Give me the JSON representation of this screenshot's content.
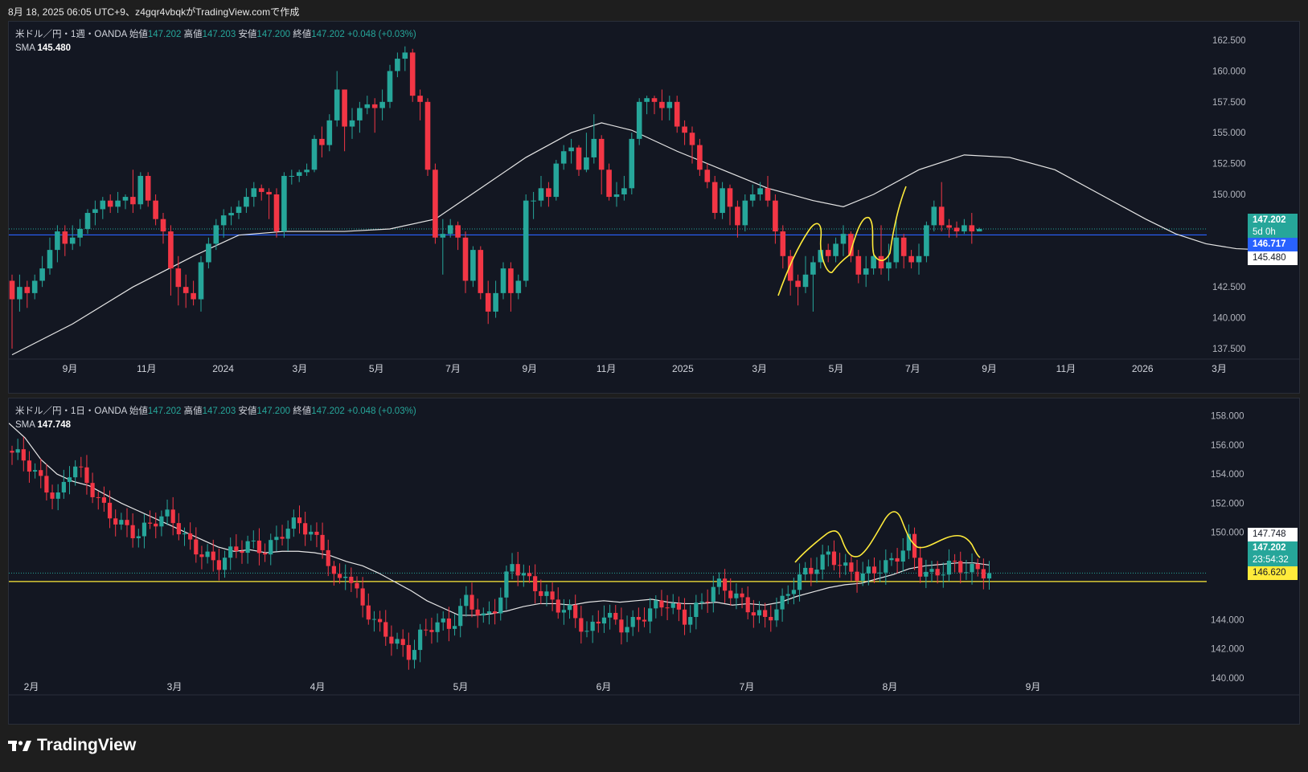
{
  "header": {
    "caption": "8月 18, 2025 06:05 UTC+9、z4gqr4vbqkがTradingView.comで作成"
  },
  "colors": {
    "up": "#26a69a",
    "down": "#f23645",
    "sma": "#e6e6e6",
    "hline_weekly": "#2962ff",
    "hline_daily": "#ffeb3b",
    "drawing": "#ffeb3b",
    "pane_bg": "#131722"
  },
  "weekly": {
    "symbol": "米ドル／円・1週・OANDA",
    "open_label": "始値",
    "open": "147.202",
    "high_label": "高値",
    "high": "147.203",
    "low_label": "安値",
    "low": "147.200",
    "close_label": "終値",
    "close": "147.202",
    "change": "+0.048 (+0.03%)",
    "sma_label": "SMA",
    "sma_value": "145.480",
    "y_ticks": [
      "162.500",
      "160.000",
      "157.500",
      "155.000",
      "152.500",
      "150.000",
      "142.500",
      "140.000",
      "137.500"
    ],
    "x_ticks": [
      "9月",
      "11月",
      "2024",
      "3月",
      "5月",
      "7月",
      "9月",
      "11月",
      "2025",
      "3月",
      "5月",
      "7月",
      "9月",
      "11月",
      "2026",
      "3月"
    ],
    "tags": {
      "price": "147.202",
      "countdown": "5d 0h",
      "hline": "146.717",
      "sma": "145.480"
    }
  },
  "daily": {
    "symbol": "米ドル／円・1日・OANDA",
    "open_label": "始値",
    "open": "147.202",
    "high_label": "高値",
    "high": "147.203",
    "low_label": "安値",
    "low": "147.200",
    "close_label": "終値",
    "close": "147.202",
    "change": "+0.048 (+0.03%)",
    "sma_label": "SMA",
    "sma_value": "147.748",
    "y_ticks": [
      "158.000",
      "156.000",
      "154.000",
      "152.000",
      "150.000",
      "144.000",
      "142.000",
      "140.000"
    ],
    "x_ticks": [
      "2月",
      "3月",
      "4月",
      "5月",
      "6月",
      "7月",
      "8月",
      "9月"
    ],
    "tags": {
      "sma": "147.748",
      "price": "147.202",
      "countdown": "23:54:32",
      "hline": "146.620"
    }
  },
  "chart_data": [
    {
      "type": "candlestick",
      "title": "米ドル／円・1週・OANDA",
      "ylim": [
        136,
        164
      ],
      "horizontal_line": 146.717,
      "last_price": 147.202,
      "sma_last": 145.48,
      "sma_path": [
        [
          0,
          137.0
        ],
        [
          8,
          139.5
        ],
        [
          16,
          142.5
        ],
        [
          24,
          145.0
        ],
        [
          30,
          146.7
        ],
        [
          36,
          147.0
        ],
        [
          44,
          147.0
        ],
        [
          50,
          147.2
        ],
        [
          56,
          148.0
        ],
        [
          62,
          150.5
        ],
        [
          68,
          153.0
        ],
        [
          74,
          155.0
        ],
        [
          78,
          155.8
        ],
        [
          82,
          155.2
        ],
        [
          88,
          153.5
        ],
        [
          94,
          152.0
        ],
        [
          100,
          150.5
        ],
        [
          106,
          149.5
        ],
        [
          110,
          149.0
        ],
        [
          114,
          150.0
        ],
        [
          120,
          152.0
        ],
        [
          126,
          153.2
        ],
        [
          132,
          153.0
        ],
        [
          138,
          152.0
        ],
        [
          144,
          150.0
        ],
        [
          150,
          148.0
        ],
        [
          154,
          146.8
        ],
        [
          158,
          146.0
        ],
        [
          162,
          145.6
        ],
        [
          166,
          145.5
        ]
      ],
      "candles": [
        [
          143.0,
          141.5,
          143.5,
          137.5
        ],
        [
          141.5,
          142.5,
          143.5,
          140.5
        ],
        [
          142.5,
          142.0,
          143.0,
          140.8
        ],
        [
          142.0,
          143.0,
          143.5,
          141.5
        ],
        [
          143.0,
          144.0,
          145.0,
          142.5
        ],
        [
          144.0,
          145.5,
          146.5,
          143.5
        ],
        [
          145.5,
          147.0,
          147.5,
          144.5
        ],
        [
          147.0,
          146.0,
          147.5,
          145.0
        ],
        [
          146.0,
          146.5,
          147.5,
          145.5
        ],
        [
          146.5,
          147.2,
          148.0,
          145.8
        ],
        [
          147.2,
          148.5,
          148.8,
          146.8
        ],
        [
          148.5,
          148.8,
          149.5,
          147.5
        ],
        [
          148.8,
          149.5,
          149.8,
          148.0
        ],
        [
          149.5,
          149.0,
          150.0,
          148.5
        ],
        [
          149.0,
          149.5,
          150.2,
          148.5
        ],
        [
          149.5,
          149.8,
          150.0,
          148.8
        ],
        [
          149.8,
          149.2,
          152.0,
          148.5
        ],
        [
          149.2,
          151.5,
          151.8,
          148.8
        ],
        [
          151.5,
          149.5,
          151.8,
          149.0
        ],
        [
          149.5,
          148.0,
          150.0,
          147.5
        ],
        [
          148.0,
          147.0,
          148.5,
          146.0
        ],
        [
          147.0,
          144.0,
          147.5,
          141.8
        ],
        [
          144.0,
          142.5,
          145.0,
          141.0
        ],
        [
          142.5,
          142.0,
          143.5,
          140.8
        ],
        [
          142.0,
          141.5,
          143.0,
          141.0
        ],
        [
          141.5,
          144.5,
          145.0,
          140.5
        ],
        [
          144.5,
          146.0,
          146.5,
          144.0
        ],
        [
          146.0,
          147.5,
          148.0,
          145.5
        ],
        [
          147.5,
          148.3,
          148.8,
          146.5
        ],
        [
          148.3,
          148.5,
          149.0,
          147.5
        ],
        [
          148.5,
          149.0,
          149.5,
          148.0
        ],
        [
          149.0,
          149.8,
          150.5,
          148.5
        ],
        [
          149.8,
          150.5,
          151.0,
          149.0
        ],
        [
          150.5,
          150.2,
          150.8,
          149.5
        ],
        [
          150.2,
          150.0,
          150.5,
          148.0
        ],
        [
          150.0,
          147.0,
          150.5,
          146.5
        ],
        [
          147.0,
          151.5,
          151.8,
          146.5
        ],
        [
          151.5,
          151.5,
          152.0,
          150.8
        ],
        [
          151.5,
          151.8,
          152.0,
          151.0
        ],
        [
          151.8,
          152.0,
          152.5,
          151.5
        ],
        [
          152.0,
          154.5,
          154.8,
          151.8
        ],
        [
          154.5,
          154.0,
          155.5,
          153.0
        ],
        [
          154.0,
          156.0,
          156.5,
          153.5
        ],
        [
          156.0,
          158.5,
          160.0,
          155.5
        ],
        [
          158.5,
          155.5,
          158.5,
          153.5
        ],
        [
          155.5,
          156.0,
          157.0,
          154.5
        ],
        [
          156.0,
          157.0,
          157.5,
          155.0
        ],
        [
          157.0,
          157.3,
          158.0,
          156.5
        ],
        [
          157.3,
          157.0,
          157.8,
          155.0
        ],
        [
          157.0,
          157.5,
          158.5,
          156.0
        ],
        [
          157.5,
          160.0,
          160.5,
          157.0
        ],
        [
          160.0,
          161.0,
          161.5,
          159.5
        ],
        [
          161.0,
          161.5,
          162.0,
          160.0
        ],
        [
          161.5,
          158.0,
          161.8,
          157.5
        ],
        [
          158.0,
          157.5,
          158.5,
          156.0
        ],
        [
          157.5,
          152.0,
          157.8,
          151.5
        ],
        [
          152.0,
          146.5,
          152.5,
          146.0
        ],
        [
          146.5,
          146.8,
          148.0,
          143.5
        ],
        [
          146.8,
          147.5,
          148.0,
          146.5
        ],
        [
          147.5,
          146.5,
          147.8,
          145.5
        ],
        [
          146.5,
          143.0,
          147.0,
          142.0
        ],
        [
          143.0,
          145.5,
          145.8,
          142.5
        ],
        [
          145.5,
          142.0,
          145.8,
          141.5
        ],
        [
          142.0,
          140.5,
          143.0,
          139.5
        ],
        [
          140.5,
          142.0,
          143.0,
          140.0
        ],
        [
          142.0,
          144.0,
          144.5,
          141.5
        ],
        [
          144.0,
          142.0,
          144.5,
          140.5
        ],
        [
          142.0,
          143.0,
          143.5,
          141.5
        ],
        [
          143.0,
          149.5,
          150.0,
          142.5
        ],
        [
          149.5,
          149.5,
          150.2,
          148.0
        ],
        [
          149.5,
          150.5,
          151.5,
          149.0
        ],
        [
          150.5,
          149.8,
          151.0,
          149.0
        ],
        [
          149.8,
          152.5,
          152.8,
          149.5
        ],
        [
          152.5,
          153.5,
          154.0,
          152.0
        ],
        [
          153.5,
          153.8,
          154.5,
          152.5
        ],
        [
          153.8,
          152.0,
          154.0,
          151.5
        ],
        [
          152.0,
          153.0,
          155.0,
          151.8
        ],
        [
          153.0,
          154.5,
          156.5,
          152.5
        ],
        [
          154.5,
          152.0,
          154.8,
          150.0
        ],
        [
          152.0,
          149.8,
          152.5,
          149.5
        ],
        [
          149.8,
          150.0,
          151.0,
          149.0
        ],
        [
          150.0,
          150.5,
          151.5,
          149.5
        ],
        [
          150.5,
          154.5,
          155.0,
          150.0
        ],
        [
          154.5,
          157.5,
          157.8,
          154.0
        ],
        [
          157.5,
          157.8,
          158.0,
          156.5
        ],
        [
          157.8,
          157.5,
          158.0,
          156.5
        ],
        [
          157.5,
          157.0,
          158.5,
          156.0
        ],
        [
          157.0,
          157.5,
          158.0,
          156.0
        ],
        [
          157.5,
          155.5,
          158.0,
          155.0
        ],
        [
          155.5,
          155.0,
          156.0,
          154.0
        ],
        [
          155.0,
          154.0,
          155.5,
          152.5
        ],
        [
          154.0,
          152.0,
          154.5,
          151.5
        ],
        [
          152.0,
          151.0,
          152.5,
          150.5
        ],
        [
          151.0,
          148.5,
          151.5,
          148.0
        ],
        [
          148.5,
          150.5,
          151.0,
          148.0
        ],
        [
          150.5,
          149.0,
          150.8,
          147.5
        ],
        [
          149.0,
          147.5,
          149.5,
          146.5
        ],
        [
          147.5,
          149.5,
          150.0,
          147.0
        ],
        [
          149.5,
          150.0,
          150.8,
          149.0
        ],
        [
          150.0,
          150.5,
          151.0,
          149.5
        ],
        [
          150.5,
          149.5,
          151.5,
          149.0
        ],
        [
          149.5,
          147.0,
          150.0,
          146.0
        ],
        [
          147.0,
          145.0,
          147.5,
          144.0
        ],
        [
          145.0,
          143.0,
          145.5,
          141.8
        ],
        [
          143.0,
          142.5,
          143.5,
          141.0
        ],
        [
          142.5,
          143.5,
          145.0,
          142.0
        ],
        [
          143.5,
          144.5,
          145.0,
          140.5
        ],
        [
          144.5,
          145.5,
          145.8,
          144.0
        ],
        [
          145.5,
          145.0,
          146.0,
          144.5
        ],
        [
          145.0,
          146.0,
          146.5,
          144.5
        ],
        [
          146.0,
          146.8,
          147.5,
          145.0
        ],
        [
          146.8,
          145.0,
          147.0,
          144.5
        ],
        [
          145.0,
          143.5,
          145.5,
          142.8
        ],
        [
          143.5,
          144.0,
          145.0,
          142.5
        ],
        [
          144.0,
          145.0,
          145.5,
          143.5
        ],
        [
          145.0,
          144.0,
          147.5,
          143.5
        ],
        [
          144.0,
          144.5,
          146.0,
          143.0
        ],
        [
          144.5,
          146.5,
          148.0,
          144.0
        ],
        [
          146.5,
          145.0,
          146.8,
          144.0
        ],
        [
          145.0,
          144.5,
          145.5,
          144.0
        ],
        [
          144.5,
          145.0,
          146.0,
          143.5
        ],
        [
          145.0,
          147.5,
          147.8,
          144.5
        ],
        [
          147.5,
          149.0,
          149.5,
          147.0
        ],
        [
          149.0,
          147.5,
          151.0,
          147.0
        ],
        [
          147.5,
          147.3,
          148.0,
          146.5
        ],
        [
          147.3,
          147.0,
          147.8,
          146.5
        ],
        [
          147.0,
          147.5,
          148.0,
          146.8
        ],
        [
          147.5,
          147.0,
          148.5,
          146.0
        ],
        [
          147.0,
          147.2,
          147.3,
          147.1
        ]
      ],
      "candle_x_start": 4,
      "candle_spacing": 9.4
    },
    {
      "type": "candlestick",
      "title": "米ドル／円・1日・OANDA",
      "ylim": [
        138.5,
        159.2
      ],
      "horizontal_line": 146.62,
      "last_price": 147.202,
      "sma_last": 147.748,
      "sma_path": [
        [
          0,
          157.5
        ],
        [
          20,
          156.5
        ],
        [
          40,
          155.0
        ],
        [
          60,
          154.0
        ],
        [
          80,
          153.5
        ],
        [
          100,
          153.2
        ],
        [
          120,
          152.6
        ],
        [
          140,
          152.0
        ],
        [
          160,
          151.5
        ],
        [
          180,
          151.0
        ],
        [
          200,
          150.5
        ],
        [
          220,
          150.0
        ],
        [
          240,
          149.5
        ],
        [
          260,
          149.0
        ],
        [
          280,
          148.7
        ],
        [
          300,
          148.8
        ],
        [
          320,
          148.6
        ],
        [
          340,
          148.7
        ],
        [
          360,
          148.7
        ],
        [
          380,
          148.6
        ],
        [
          400,
          148.4
        ],
        [
          420,
          148.0
        ],
        [
          440,
          147.7
        ],
        [
          460,
          147.2
        ],
        [
          480,
          146.6
        ],
        [
          500,
          146.0
        ],
        [
          520,
          145.3
        ],
        [
          540,
          144.8
        ],
        [
          560,
          144.3
        ],
        [
          580,
          144.3
        ],
        [
          600,
          144.4
        ],
        [
          620,
          144.6
        ],
        [
          640,
          144.9
        ],
        [
          660,
          145.1
        ],
        [
          680,
          145.1
        ],
        [
          700,
          145.0
        ],
        [
          720,
          145.2
        ],
        [
          740,
          145.3
        ],
        [
          760,
          145.2
        ],
        [
          780,
          145.3
        ],
        [
          800,
          145.4
        ],
        [
          820,
          145.2
        ],
        [
          840,
          145.1
        ],
        [
          860,
          145.1
        ],
        [
          880,
          145.2
        ],
        [
          900,
          145.0
        ],
        [
          920,
          145.1
        ],
        [
          940,
          145.0
        ],
        [
          960,
          145.2
        ],
        [
          980,
          145.6
        ],
        [
          1000,
          145.9
        ],
        [
          1020,
          146.2
        ],
        [
          1040,
          146.4
        ],
        [
          1060,
          146.5
        ],
        [
          1080,
          146.8
        ],
        [
          1100,
          147.1
        ],
        [
          1120,
          147.5
        ],
        [
          1140,
          147.7
        ],
        [
          1160,
          147.8
        ],
        [
          1180,
          147.9
        ],
        [
          1200,
          147.9
        ],
        [
          1220,
          147.75
        ]
      ],
      "candle_x_start": 4,
      "candle_spacing": 7.15
    }
  ]
}
